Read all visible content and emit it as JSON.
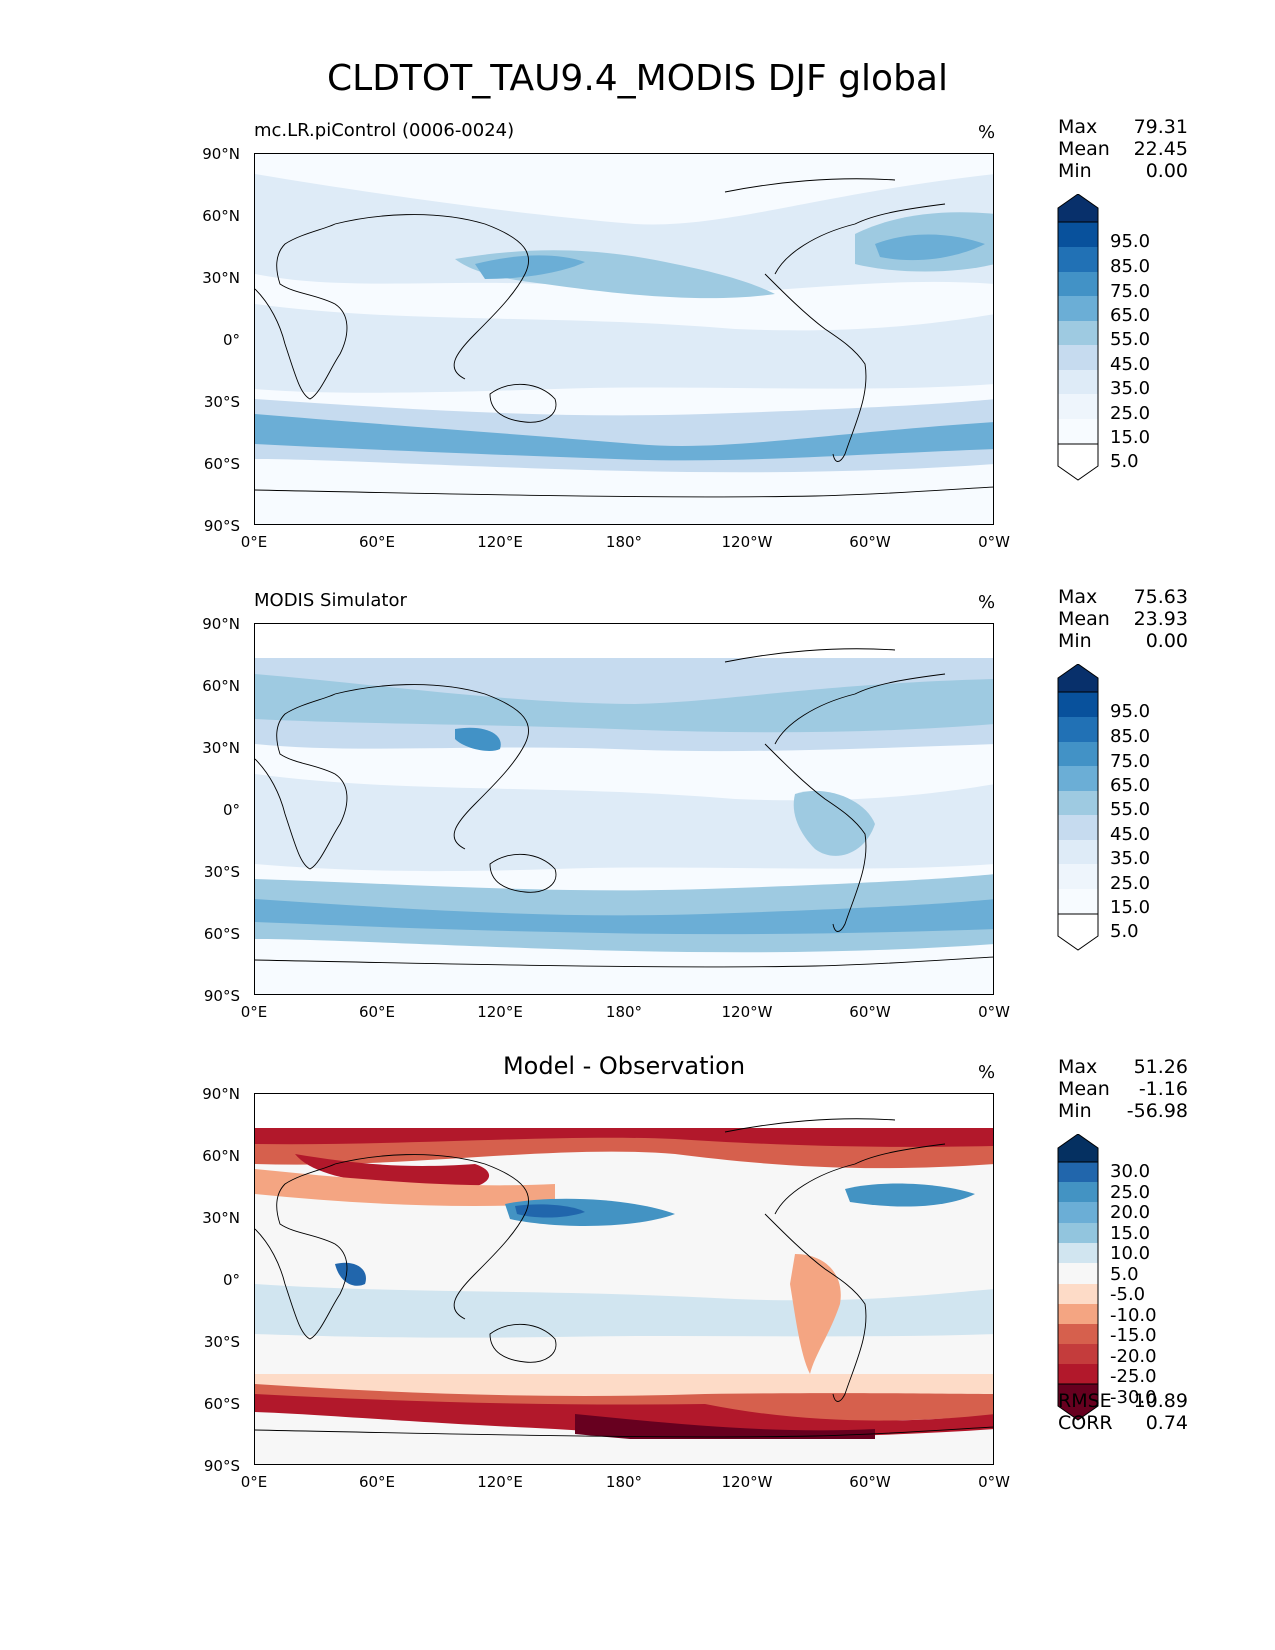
{
  "figure": {
    "title": "CLDTOT_TAU9.4_MODIS DJF global"
  },
  "axes": {
    "lat_labels": [
      "90°N",
      "60°N",
      "30°N",
      "0°",
      "30°S",
      "60°S",
      "90°S"
    ],
    "lon_labels": [
      "0°E",
      "60°E",
      "120°E",
      "180°",
      "120°W",
      "60°W",
      "0°W"
    ]
  },
  "panels": [
    {
      "title": "mc.LR.piControl (0006-0024)",
      "units": "%",
      "stats": {
        "max_label": "Max",
        "max": "79.31",
        "mean_label": "Mean",
        "mean": "22.45",
        "min_label": "Min",
        "min": "0.00"
      },
      "colorbar": {
        "labels": [
          "95.0",
          "85.0",
          "75.0",
          "65.0",
          "55.0",
          "45.0",
          "35.0",
          "25.0",
          "15.0",
          "5.0"
        ]
      }
    },
    {
      "title": "MODIS Simulator",
      "units": "%",
      "stats": {
        "max_label": "Max",
        "max": "75.63",
        "mean_label": "Mean",
        "mean": "23.93",
        "min_label": "Min",
        "min": "0.00"
      },
      "colorbar": {
        "labels": [
          "95.0",
          "85.0",
          "75.0",
          "65.0",
          "55.0",
          "45.0",
          "35.0",
          "25.0",
          "15.0",
          "5.0"
        ]
      }
    },
    {
      "title": "Model - Observation",
      "units": "%",
      "stats": {
        "max_label": "Max",
        "max": "51.26",
        "mean_label": "Mean",
        "mean": "-1.16",
        "min_label": "Min",
        "min": "-56.98"
      },
      "colorbar": {
        "labels": [
          "30.0",
          "25.0",
          "20.0",
          "15.0",
          "10.0",
          "5.0",
          "-5.0",
          "-10.0",
          "-15.0",
          "-20.0",
          "-25.0",
          "-30.0"
        ]
      },
      "rmse_label": "RMSE",
      "rmse": "10.89",
      "corr_label": "CORR",
      "corr": "0.74"
    }
  ],
  "colors": {
    "blues": [
      "#f7fbff",
      "#deebf7",
      "#c6dbef",
      "#9ecae1",
      "#6baed6",
      "#4292c6",
      "#2171b5",
      "#08519c",
      "#08306b"
    ],
    "diverging": [
      "#67001f",
      "#b2182b",
      "#d6604d",
      "#f4a582",
      "#fddbc7",
      "#f7f7f7",
      "#d1e5f0",
      "#92c5de",
      "#4393c3",
      "#2166ac",
      "#053061"
    ]
  },
  "chart_data": [
    {
      "type": "heatmap",
      "title": "mc.LR.piControl (0006-0024)",
      "projection": "global lat-lon map",
      "xlim": [
        0,
        360
      ],
      "ylim": [
        -90,
        90
      ],
      "xticks": [
        "0°E",
        "60°E",
        "120°E",
        "180°",
        "120°W",
        "60°W",
        "0°W"
      ],
      "yticks": [
        "90°N",
        "60°N",
        "30°N",
        "0°",
        "30°S",
        "60°S",
        "90°S"
      ],
      "colorbar_levels": [
        5,
        15,
        25,
        35,
        45,
        55,
        65,
        75,
        85,
        95
      ],
      "units": "%",
      "max": 79.31,
      "mean": 22.45,
      "min": 0.0
    },
    {
      "type": "heatmap",
      "title": "MODIS Simulator",
      "projection": "global lat-lon map",
      "xlim": [
        0,
        360
      ],
      "ylim": [
        -90,
        90
      ],
      "colorbar_levels": [
        5,
        15,
        25,
        35,
        45,
        55,
        65,
        75,
        85,
        95
      ],
      "units": "%",
      "max": 75.63,
      "mean": 23.93,
      "min": 0.0
    },
    {
      "type": "heatmap",
      "title": "Model - Observation",
      "projection": "global lat-lon map",
      "xlim": [
        0,
        360
      ],
      "ylim": [
        -90,
        90
      ],
      "colorbar_levels": [
        -30,
        -25,
        -20,
        -15,
        -10,
        -5,
        5,
        10,
        15,
        20,
        25,
        30
      ],
      "units": "%",
      "max": 51.26,
      "mean": -1.16,
      "min": -56.98,
      "rmse": 10.89,
      "corr": 0.74
    }
  ]
}
